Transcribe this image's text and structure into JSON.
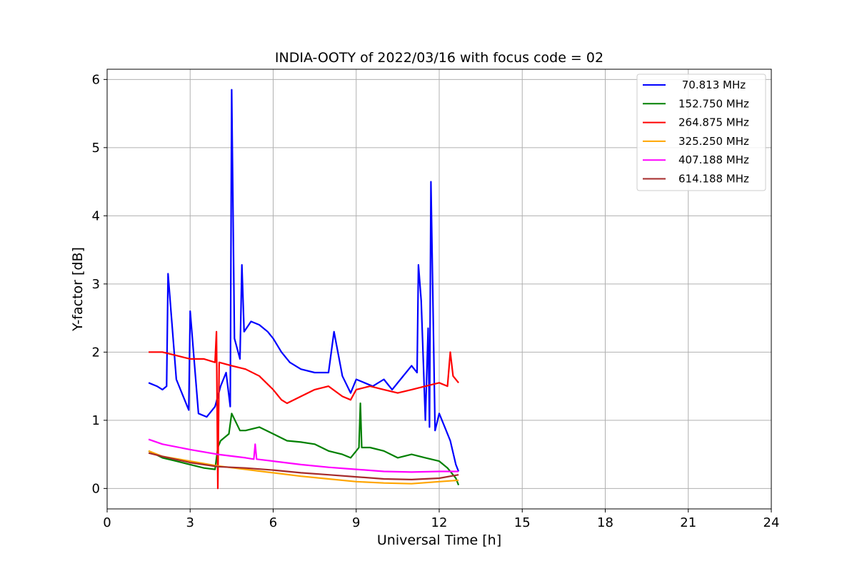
{
  "chart_data": {
    "type": "line",
    "title": "INDIA-OOTY of 2022/03/16 with focus code = 02",
    "xlabel": "Universal Time [h]",
    "ylabel": "Y-factor [dB]",
    "xlim": [
      0,
      24
    ],
    "ylim": [
      -0.3,
      6.15
    ],
    "xticks": [
      0,
      3,
      6,
      9,
      12,
      15,
      18,
      21,
      24
    ],
    "yticks": [
      0,
      1,
      2,
      3,
      4,
      5,
      6
    ],
    "grid": true,
    "legend_position": "top-right",
    "series": [
      {
        "name": " 70.813 MHz",
        "color": "#0000ff",
        "x": [
          1.5,
          1.8,
          2.0,
          2.15,
          2.2,
          2.5,
          2.8,
          2.95,
          3.0,
          3.3,
          3.6,
          3.9,
          4.1,
          4.3,
          4.45,
          4.5,
          4.6,
          4.8,
          4.87,
          4.95,
          5.2,
          5.5,
          5.8,
          6.0,
          6.3,
          6.6,
          7.0,
          7.5,
          8.0,
          8.2,
          8.5,
          8.8,
          9.0,
          9.3,
          9.6,
          10.0,
          10.3,
          10.6,
          11.0,
          11.2,
          11.25,
          11.35,
          11.5,
          11.6,
          11.65,
          11.7,
          11.85,
          12.0,
          12.2,
          12.4,
          12.6,
          12.7
        ],
        "y": [
          1.55,
          1.5,
          1.45,
          1.5,
          3.15,
          1.6,
          1.3,
          1.15,
          2.6,
          1.1,
          1.05,
          1.2,
          1.5,
          1.7,
          1.2,
          5.85,
          2.2,
          1.9,
          3.28,
          2.3,
          2.45,
          2.4,
          2.3,
          2.2,
          2.0,
          1.85,
          1.75,
          1.7,
          1.7,
          2.3,
          1.65,
          1.4,
          1.6,
          1.55,
          1.5,
          1.6,
          1.45,
          1.6,
          1.8,
          1.7,
          3.28,
          2.75,
          1.0,
          2.35,
          0.9,
          4.5,
          0.85,
          1.1,
          0.9,
          0.7,
          0.35,
          0.25
        ]
      },
      {
        "name": "152.750 MHz",
        "color": "#008000",
        "x": [
          1.5,
          2.0,
          2.5,
          3.0,
          3.5,
          3.9,
          4.0,
          4.1,
          4.4,
          4.5,
          4.8,
          5.0,
          5.5,
          6.0,
          6.5,
          7.0,
          7.5,
          8.0,
          8.5,
          8.8,
          9.0,
          9.1,
          9.15,
          9.2,
          9.5,
          10.0,
          10.5,
          11.0,
          11.5,
          12.0,
          12.3,
          12.6,
          12.7
        ],
        "y": [
          0.55,
          0.45,
          0.4,
          0.35,
          0.3,
          0.28,
          0.6,
          0.7,
          0.8,
          1.1,
          0.85,
          0.85,
          0.9,
          0.8,
          0.7,
          0.68,
          0.65,
          0.55,
          0.5,
          0.45,
          0.55,
          0.6,
          1.25,
          0.6,
          0.6,
          0.55,
          0.45,
          0.5,
          0.45,
          0.4,
          0.3,
          0.15,
          0.05
        ]
      },
      {
        "name": "264.875 MHz",
        "color": "#ff0000",
        "x": [
          1.5,
          2.0,
          2.5,
          3.0,
          3.5,
          3.9,
          3.95,
          4.0,
          4.05,
          4.5,
          5.0,
          5.5,
          6.0,
          6.3,
          6.5,
          7.0,
          7.5,
          8.0,
          8.5,
          8.8,
          9.0,
          9.5,
          10.0,
          10.5,
          11.0,
          11.5,
          12.0,
          12.3,
          12.4,
          12.5,
          12.7
        ],
        "y": [
          2.0,
          2.0,
          1.95,
          1.9,
          1.9,
          1.85,
          2.3,
          0.0,
          1.85,
          1.8,
          1.75,
          1.65,
          1.45,
          1.3,
          1.25,
          1.35,
          1.45,
          1.5,
          1.35,
          1.3,
          1.45,
          1.5,
          1.45,
          1.4,
          1.45,
          1.5,
          1.55,
          1.5,
          2.0,
          1.65,
          1.55
        ]
      },
      {
        "name": "325.250 MHz",
        "color": "#ffa500",
        "x": [
          1.5,
          2.0,
          3.0,
          4.0,
          5.0,
          6.0,
          7.0,
          8.0,
          9.0,
          10.0,
          11.0,
          12.0,
          12.7
        ],
        "y": [
          0.55,
          0.47,
          0.4,
          0.33,
          0.28,
          0.23,
          0.18,
          0.14,
          0.1,
          0.08,
          0.07,
          0.1,
          0.12
        ]
      },
      {
        "name": "407.188 MHz",
        "color": "#ff00ff",
        "x": [
          1.5,
          2.0,
          3.0,
          4.0,
          5.0,
          5.3,
          5.35,
          5.4,
          6.0,
          7.0,
          8.0,
          9.0,
          10.0,
          11.0,
          12.0,
          12.7
        ],
        "y": [
          0.72,
          0.65,
          0.57,
          0.5,
          0.45,
          0.43,
          0.65,
          0.43,
          0.4,
          0.35,
          0.31,
          0.28,
          0.25,
          0.24,
          0.25,
          0.25
        ]
      },
      {
        "name": "614.188 MHz",
        "color": "#a52a2a",
        "x": [
          1.5,
          2.0,
          3.0,
          4.0,
          5.0,
          6.0,
          7.0,
          8.0,
          9.0,
          10.0,
          11.0,
          12.0,
          12.7
        ],
        "y": [
          0.52,
          0.47,
          0.38,
          0.32,
          0.3,
          0.27,
          0.23,
          0.2,
          0.17,
          0.14,
          0.13,
          0.15,
          0.2
        ]
      }
    ]
  }
}
